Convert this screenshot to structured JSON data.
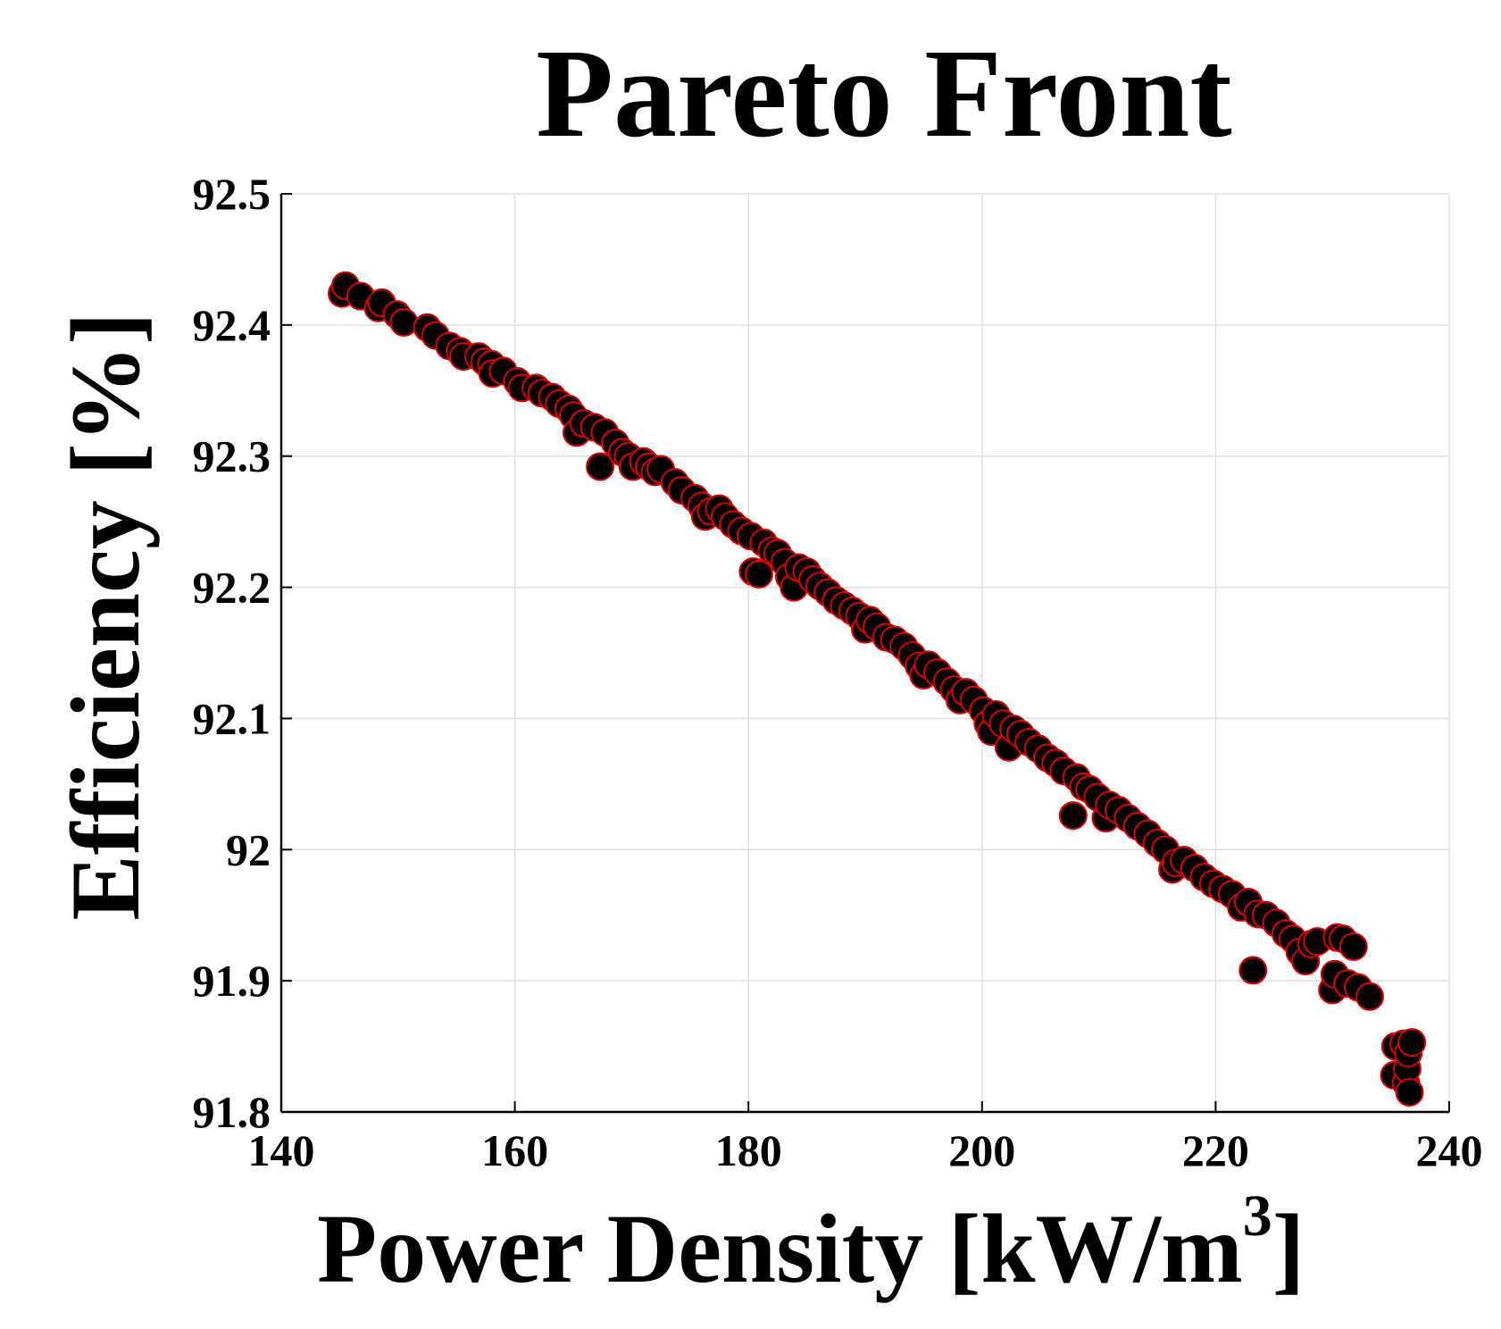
{
  "chart_data": {
    "type": "scatter",
    "title": "Pareto Front",
    "xlabel": "Power Density [kW/m",
    "xlabel_superscript": "3",
    "xlabel_suffix": "]",
    "ylabel": "Efficiency [%]",
    "xlim": [
      140,
      240
    ],
    "ylim": [
      91.8,
      92.5
    ],
    "xticks": [
      140,
      160,
      180,
      200,
      220,
      240
    ],
    "xtick_labels": [
      "140",
      "160",
      "180",
      "200",
      "220",
      "240"
    ],
    "yticks": [
      91.8,
      91.9,
      92.0,
      92.1,
      92.2,
      92.3,
      92.4,
      92.5
    ],
    "ytick_labels": [
      "91.8",
      "91.9",
      "92",
      "92.1",
      "92.2",
      "92.3",
      "92.4",
      "92.5"
    ],
    "grid": true,
    "marker": {
      "fill": "#000000",
      "edge": "#e00000"
    },
    "series": [
      {
        "points": [
          [
            145.2,
            92.424
          ],
          [
            145.5,
            92.43
          ],
          [
            146.8,
            92.422
          ],
          [
            148.3,
            92.413
          ],
          [
            148.6,
            92.417
          ],
          [
            149.9,
            92.408
          ],
          [
            150.5,
            92.402
          ],
          [
            152.5,
            92.398
          ],
          [
            153.2,
            92.392
          ],
          [
            154.4,
            92.384
          ],
          [
            155.3,
            92.38
          ],
          [
            155.6,
            92.376
          ],
          [
            156.9,
            92.376
          ],
          [
            157.4,
            92.372
          ],
          [
            158.0,
            92.37
          ],
          [
            158.1,
            92.363
          ],
          [
            159.0,
            92.365
          ],
          [
            160.2,
            92.357
          ],
          [
            160.6,
            92.352
          ],
          [
            161.8,
            92.352
          ],
          [
            162.3,
            92.348
          ],
          [
            163.2,
            92.345
          ],
          [
            163.8,
            92.34
          ],
          [
            164.6,
            92.336
          ],
          [
            165.0,
            92.331
          ],
          [
            165.3,
            92.318
          ],
          [
            165.9,
            92.325
          ],
          [
            166.8,
            92.322
          ],
          [
            167.3,
            92.292
          ],
          [
            167.7,
            92.318
          ],
          [
            168.6,
            92.31
          ],
          [
            169.2,
            92.303
          ],
          [
            169.7,
            92.3
          ],
          [
            170.1,
            92.292
          ],
          [
            171.0,
            92.296
          ],
          [
            171.5,
            92.292
          ],
          [
            172.0,
            92.288
          ],
          [
            172.5,
            92.29
          ],
          [
            173.7,
            92.28
          ],
          [
            174.3,
            92.274
          ],
          [
            175.4,
            92.268
          ],
          [
            176.0,
            92.262
          ],
          [
            176.3,
            92.254
          ],
          [
            176.8,
            92.258
          ],
          [
            177.5,
            92.26
          ],
          [
            178.0,
            92.254
          ],
          [
            178.7,
            92.248
          ],
          [
            179.4,
            92.243
          ],
          [
            180.2,
            92.239
          ],
          [
            180.4,
            92.212
          ],
          [
            180.9,
            92.21
          ],
          [
            181.3,
            92.234
          ],
          [
            182.0,
            92.228
          ],
          [
            182.5,
            92.226
          ],
          [
            183.1,
            92.219
          ],
          [
            183.5,
            92.208
          ],
          [
            183.9,
            92.2
          ],
          [
            184.3,
            92.215
          ],
          [
            185.0,
            92.212
          ],
          [
            185.5,
            92.206
          ],
          [
            186.1,
            92.201
          ],
          [
            186.8,
            92.196
          ],
          [
            187.5,
            92.19
          ],
          [
            188.2,
            92.186
          ],
          [
            188.9,
            92.182
          ],
          [
            189.5,
            92.178
          ],
          [
            190.0,
            92.168
          ],
          [
            190.4,
            92.175
          ],
          [
            191.0,
            92.17
          ],
          [
            191.8,
            92.162
          ],
          [
            192.5,
            92.16
          ],
          [
            193.3,
            92.155
          ],
          [
            194.0,
            92.148
          ],
          [
            194.6,
            92.14
          ],
          [
            195.0,
            92.133
          ],
          [
            195.4,
            92.141
          ],
          [
            196.2,
            92.135
          ],
          [
            197.0,
            92.128
          ],
          [
            197.6,
            92.122
          ],
          [
            198.1,
            92.114
          ],
          [
            198.6,
            92.12
          ],
          [
            199.3,
            92.114
          ],
          [
            200.1,
            92.106
          ],
          [
            200.5,
            92.096
          ],
          [
            200.8,
            92.09
          ],
          [
            201.2,
            92.103
          ],
          [
            201.8,
            92.096
          ],
          [
            202.3,
            92.078
          ],
          [
            202.7,
            92.092
          ],
          [
            203.3,
            92.088
          ],
          [
            204.0,
            92.082
          ],
          [
            204.8,
            92.077
          ],
          [
            205.6,
            92.07
          ],
          [
            206.3,
            92.066
          ],
          [
            207.0,
            92.06
          ],
          [
            207.8,
            92.026
          ],
          [
            208.1,
            92.055
          ],
          [
            208.7,
            92.048
          ],
          [
            209.2,
            92.046
          ],
          [
            209.9,
            92.04
          ],
          [
            210.6,
            92.024
          ],
          [
            210.9,
            92.034
          ],
          [
            211.7,
            92.03
          ],
          [
            212.5,
            92.024
          ],
          [
            213.3,
            92.018
          ],
          [
            214.2,
            92.012
          ],
          [
            215.0,
            92.005
          ],
          [
            215.7,
            92.0
          ],
          [
            216.3,
            91.985
          ],
          [
            216.6,
            91.99
          ],
          [
            217.3,
            91.992
          ],
          [
            218.2,
            91.986
          ],
          [
            219.0,
            91.979
          ],
          [
            219.8,
            91.974
          ],
          [
            220.6,
            91.97
          ],
          [
            221.4,
            91.966
          ],
          [
            222.2,
            91.956
          ],
          [
            222.8,
            91.96
          ],
          [
            223.2,
            91.908
          ],
          [
            223.6,
            91.951
          ],
          [
            224.3,
            91.95
          ],
          [
            225.2,
            91.944
          ],
          [
            226.0,
            91.936
          ],
          [
            226.6,
            91.932
          ],
          [
            227.2,
            91.922
          ],
          [
            227.7,
            91.915
          ],
          [
            228.2,
            91.928
          ],
          [
            228.7,
            91.93
          ],
          [
            230.0,
            91.893
          ],
          [
            230.2,
            91.905
          ],
          [
            230.4,
            91.933
          ],
          [
            230.9,
            91.932
          ],
          [
            231.3,
            91.898
          ],
          [
            231.8,
            91.926
          ],
          [
            232.2,
            91.895
          ],
          [
            233.2,
            91.888
          ],
          [
            235.3,
            91.828
          ],
          [
            235.4,
            91.85
          ],
          [
            236.1,
            91.852
          ],
          [
            236.3,
            91.822
          ],
          [
            236.4,
            91.833
          ],
          [
            236.5,
            91.845
          ],
          [
            236.6,
            91.815
          ],
          [
            236.8,
            91.853
          ]
        ]
      }
    ]
  }
}
